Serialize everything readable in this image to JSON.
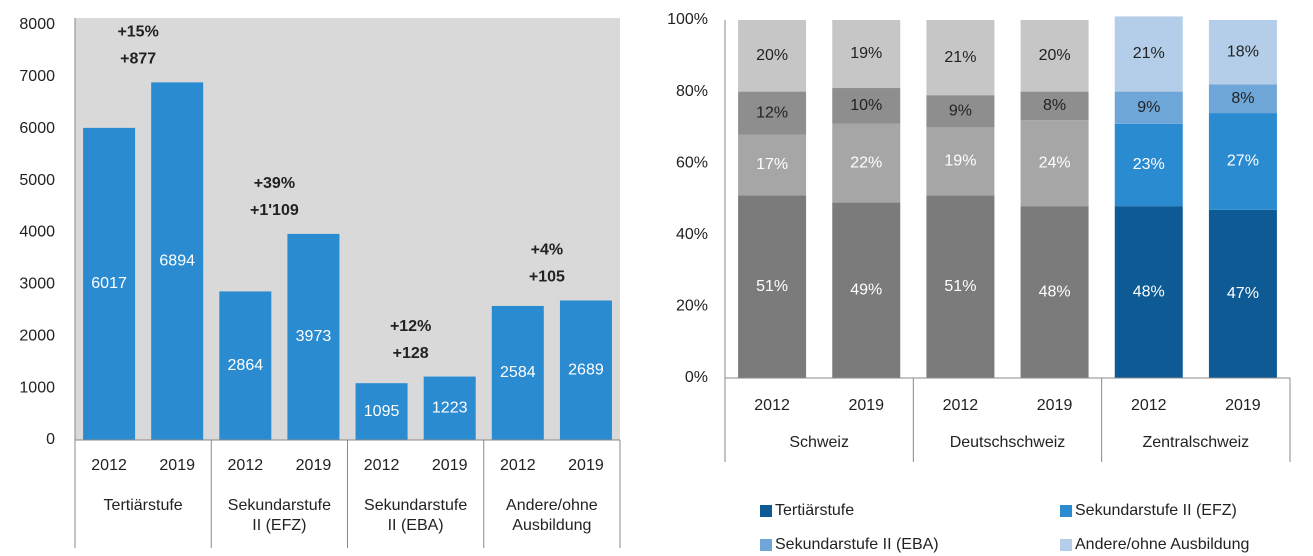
{
  "chart_data": [
    {
      "type": "bar",
      "categories": [
        "2012",
        "2019",
        "2012",
        "2019",
        "2012",
        "2019",
        "2012",
        "2019"
      ],
      "groups": [
        "Tertiärstufe",
        "Sekundarstufe II (EFZ)",
        "Sekundarstufe II (EBA)",
        "Andere/ohne Ausbildung"
      ],
      "values": [
        6017,
        6894,
        2864,
        3973,
        1095,
        1223,
        2584,
        2689
      ],
      "color": "#2b8bd1",
      "annotations": [
        [
          "+15%",
          "+877"
        ],
        [
          "+39%",
          "+1'109"
        ],
        [
          "+12%",
          "+128"
        ],
        [
          "+4%",
          "+105"
        ]
      ],
      "ylim": [
        0,
        8000
      ],
      "yticks": [
        0,
        1000,
        2000,
        3000,
        4000,
        5000,
        6000,
        7000,
        8000
      ]
    },
    {
      "type": "stacked_bar",
      "categories": [
        "2012",
        "2019",
        "2012",
        "2019",
        "2012",
        "2019"
      ],
      "groups": [
        "Schweiz",
        "Deutschschweiz",
        "Zentralschweiz"
      ],
      "series": [
        {
          "name": "Tertiärstufe",
          "color": "#0d5a95",
          "colors": [
            "#7b7b7b",
            "#7b7b7b",
            "#7b7b7b",
            "#7b7b7b",
            "#0d5a95",
            "#0d5a95"
          ],
          "values": [
            51,
            49,
            51,
            48,
            48,
            47
          ],
          "value_labels": [
            "51%",
            "49%",
            "51%",
            "48%",
            "48%",
            "47%"
          ]
        },
        {
          "name": "Sekundarstufe II (EFZ)",
          "color": "#2b8bd1",
          "colors": [
            "#a6a6a6",
            "#a6a6a6",
            "#a6a6a6",
            "#a6a6a6",
            "#2b8bd1",
            "#2b8bd1"
          ],
          "values": [
            17,
            22,
            19,
            24,
            23,
            27
          ],
          "value_labels": [
            "17%",
            "22%",
            "19%",
            "24%",
            "23%",
            "27%"
          ]
        },
        {
          "name": "Sekundarstufe II (EBA)",
          "color": "#6fa6d8",
          "colors": [
            "#8e8e8e",
            "#8e8e8e",
            "#8e8e8e",
            "#8e8e8e",
            "#6fa6d8",
            "#6fa6d8"
          ],
          "values": [
            12,
            10,
            9,
            8,
            9,
            8
          ],
          "value_labels": [
            "12%",
            "10%",
            "9%",
            "8%",
            "9%",
            "8%"
          ]
        },
        {
          "name": "Andere/ohne Ausbildung",
          "color": "#b4cde9",
          "colors": [
            "#c6c6c6",
            "#c6c6c6",
            "#c6c6c6",
            "#c6c6c6",
            "#b4cde9",
            "#b4cde9"
          ],
          "values": [
            20,
            19,
            21,
            20,
            21,
            18
          ],
          "value_labels": [
            "20%",
            "19%",
            "21%",
            "20%",
            "21%",
            "18%"
          ]
        }
      ],
      "ylim": [
        0,
        100
      ],
      "yticks": [
        {
          "value": 0,
          "label": "0%"
        },
        {
          "value": 20,
          "label": "20%"
        },
        {
          "value": 40,
          "label": "40%"
        },
        {
          "value": 60,
          "label": "60%"
        },
        {
          "value": 80,
          "label": "80%"
        },
        {
          "value": 100,
          "label": "100%"
        }
      ]
    }
  ]
}
